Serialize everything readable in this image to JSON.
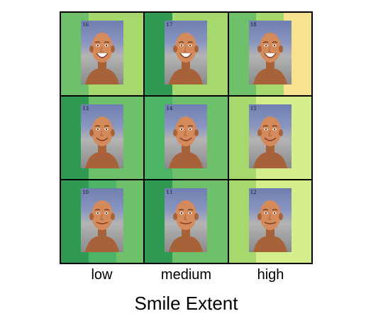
{
  "x_axis": {
    "title": "Smile Extent",
    "labels": [
      "low",
      "medium",
      "high"
    ]
  },
  "palette": {
    "dark": "#2f9a52",
    "mid_dark": "#4cb565",
    "mid": "#6ec06a",
    "light": "#a6d86e",
    "pale": "#d4ee8e",
    "yellow": "#f7e38e",
    "skin": "#d48a5a",
    "skin_shadow": "#a8623a"
  },
  "cells": [
    {
      "number": "16",
      "stripes": [
        "#6ec06a",
        "#a6d86e",
        "#a6d86e"
      ]
    },
    {
      "number": "17",
      "stripes": [
        "#2f9a52",
        "#a6d86e",
        "#a6d86e"
      ]
    },
    {
      "number": "18",
      "stripes": [
        "#6ec06a",
        "#a6d86e",
        "#f7e38e"
      ]
    },
    {
      "number": "13",
      "stripes": [
        "#2f9a52",
        "#6ec06a",
        "#6ec06a"
      ]
    },
    {
      "number": "14",
      "stripes": [
        "#4cb565",
        "#6ec06a",
        "#6ec06a"
      ]
    },
    {
      "number": "15",
      "stripes": [
        "#a6d86e",
        "#d4ee8e",
        "#d4ee8e"
      ]
    },
    {
      "number": "10",
      "stripes": [
        "#2f9a52",
        "#4cb565",
        "#6ec06a"
      ]
    },
    {
      "number": "11",
      "stripes": [
        "#2f9a52",
        "#6ec06a",
        "#6ec06a"
      ]
    },
    {
      "number": "12",
      "stripes": [
        "#a6d86e",
        "#d4ee8e",
        "#d4ee8e"
      ]
    }
  ]
}
